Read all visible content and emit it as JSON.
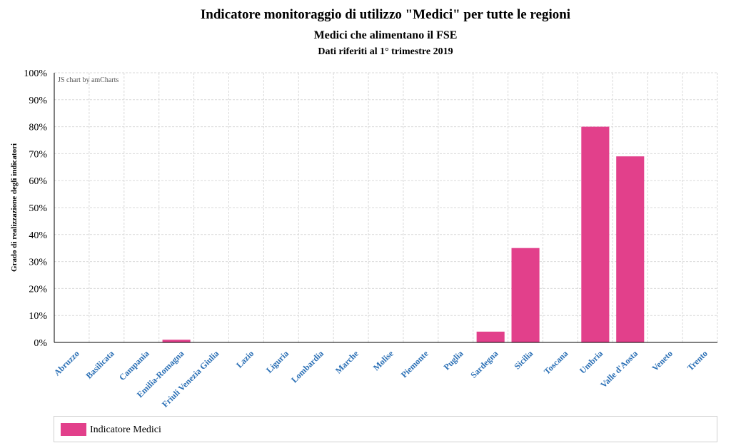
{
  "titles": {
    "main": "Indicatore monitoraggio di utilizzo \"Medici\" per tutte le regioni",
    "sub": "Medici che alimentano il FSE",
    "sub2": "Dati riferiti al 1° trimestre 2019"
  },
  "credit": "JS chart by amCharts",
  "colors": {
    "bar": "#e2408b",
    "category_label": "#2a6fb5",
    "grid": "#d9d9d9"
  },
  "chart_data": {
    "type": "bar",
    "ylabel": "Grado di realizzazione degli indicatori",
    "ylim": [
      0,
      100
    ],
    "yticks": [
      "0%",
      "10%",
      "20%",
      "30%",
      "40%",
      "50%",
      "60%",
      "70%",
      "80%",
      "90%",
      "100%"
    ],
    "grid": true,
    "legend_placement": "bottom",
    "categories": [
      "Abruzzo",
      "Basilicata",
      "Campania",
      "Emilia-Romagna",
      "Friuli Venezia Giulia",
      "Lazio",
      "Liguria",
      "Lombardia",
      "Marche",
      "Molise",
      "Piemonte",
      "Puglia",
      "Sardegna",
      "Sicilia",
      "Toscana",
      "Umbria",
      "Valle d'Aosta",
      "Veneto",
      "Trento"
    ],
    "series": [
      {
        "name": "Indicatore Medici",
        "values": [
          0,
          0,
          0,
          1,
          0,
          0,
          0,
          0,
          0,
          0,
          0,
          0,
          4,
          35,
          0,
          80,
          69,
          0,
          0
        ]
      }
    ]
  }
}
